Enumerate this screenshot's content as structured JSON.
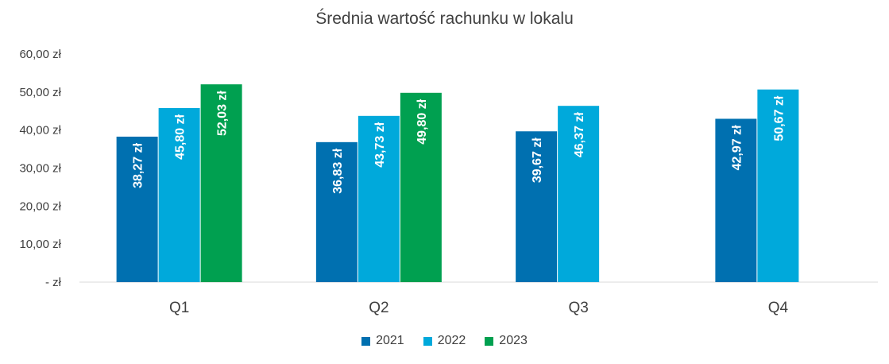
{
  "chart_data": {
    "type": "bar",
    "title": "Średnia wartość rachunku w lokalu",
    "categories": [
      "Q1",
      "Q2",
      "Q3",
      "Q4"
    ],
    "series": [
      {
        "name": "2021",
        "color": "#0070B0",
        "values": [
          38.27,
          36.83,
          39.67,
          42.97
        ],
        "labels": [
          "38,27 zł",
          "36,83 zł",
          "39,67 zł",
          "42,97 zł"
        ]
      },
      {
        "name": "2022",
        "color": "#00A9DB",
        "values": [
          45.8,
          43.73,
          46.37,
          50.67
        ],
        "labels": [
          "45,80 zł",
          "43,73 zł",
          "46,37 zł",
          "50,67 zł"
        ]
      },
      {
        "name": "2023",
        "color": "#00A050",
        "values": [
          52.03,
          49.8,
          null,
          null
        ],
        "labels": [
          "52,03 zł",
          "49,80 zł",
          "",
          ""
        ]
      }
    ],
    "ylim": [
      0,
      60
    ],
    "yticks": [
      {
        "value": 0,
        "label": "-   zł"
      },
      {
        "value": 10,
        "label": "10,00 zł"
      },
      {
        "value": 20,
        "label": "20,00 zł"
      },
      {
        "value": 30,
        "label": "30,00 zł"
      },
      {
        "value": 40,
        "label": "40,00 zł"
      },
      {
        "value": 50,
        "label": "50,00 zł"
      },
      {
        "value": 60,
        "label": "60,00 zł"
      }
    ],
    "grid": false,
    "legend_position": "bottom"
  }
}
